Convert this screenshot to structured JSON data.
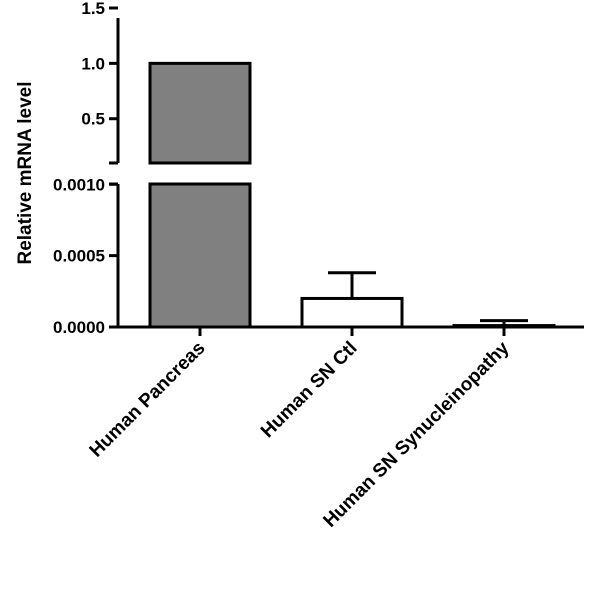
{
  "chart_data": {
    "type": "bar",
    "title": "",
    "xlabel": "",
    "ylabel": "Relative mRNA level",
    "categories": [
      "Human Pancreas",
      "Human SN Ctl",
      "Human SN Synucleinopathy"
    ],
    "values": [
      1.0,
      0.0002,
      1e-05
    ],
    "error_upper": [
      0,
      0.00038,
      4.5e-05
    ],
    "bar_colors": [
      "#808080",
      "#ffffff",
      "#ffffff"
    ],
    "axis_break": true,
    "y_segments": [
      {
        "ylim": [
          0,
          0.0011
        ],
        "ticks": [
          "0.0000",
          "0.0005",
          "0.0010"
        ],
        "tick_values": [
          0,
          0.0005,
          0.001
        ]
      },
      {
        "ylim": [
          0.1,
          1.5
        ],
        "ticks": [
          "0.5",
          "1.0",
          "1.5"
        ],
        "tick_values": [
          0.5,
          1.0,
          1.5
        ]
      }
    ],
    "grid": false,
    "legend": "none"
  }
}
